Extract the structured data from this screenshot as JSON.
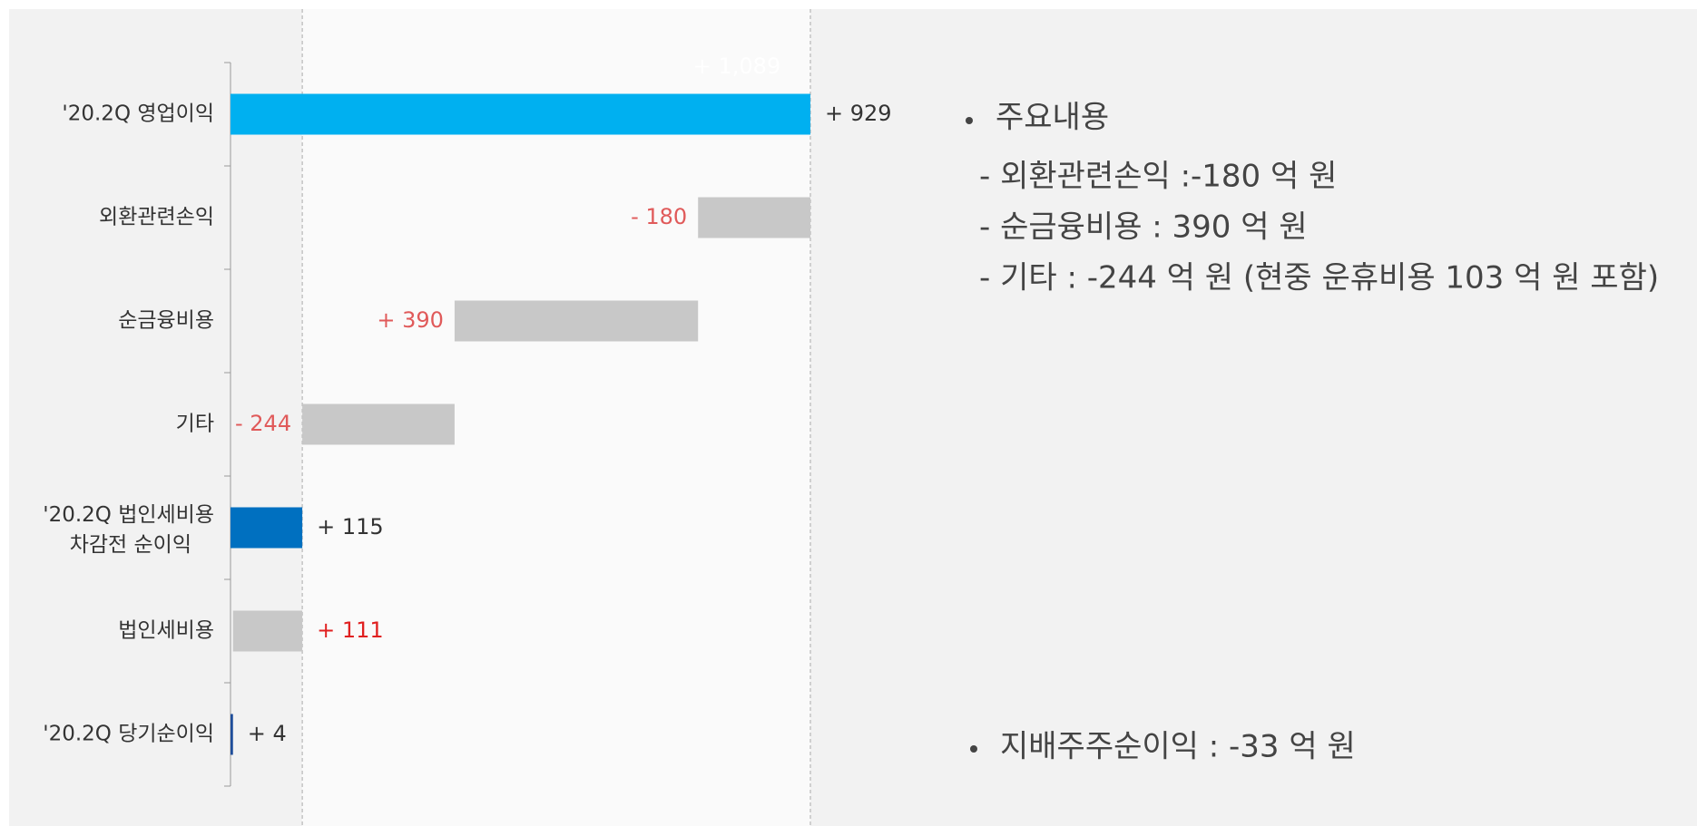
{
  "chart_data": {
    "type": "waterfall",
    "categories": [
      "'20.2Q 영업이익",
      "외환관련손익",
      "순금융비용",
      "기타",
      [
        "'20.2Q 법인세비용",
        "차감전 순이익"
      ],
      "법인세비용",
      "'20.2Q 당기순이익"
    ],
    "values": [
      929,
      -180,
      390,
      -244,
      115,
      111,
      4
    ],
    "value_labels": [
      "+ 929",
      "- 180",
      "+ 390",
      "- 244",
      "+ 115",
      "+ 111",
      "+ 4"
    ],
    "colors": [
      "#00b0f0",
      "#c8c8c8",
      "#c8c8c8",
      "#c8c8c8",
      "#0070c0",
      "#c8c8c8",
      "#1f4e9a"
    ],
    "step_color": "#c8c8c8",
    "label_colors": [
      "#333333",
      "#e05a5a",
      "#e05a5a",
      "#e05a5a",
      "#333333",
      "#e02020",
      "#333333"
    ],
    "annotation": "+ 1,089",
    "xlim": [
      0,
      929
    ]
  },
  "notes": {
    "heading": "주요내용",
    "items": [
      "- 외환관련손익 :-180 억 원",
      "- 순금융비용 : 390 억 원",
      "- 기타 : -244 억 원 (현중 운휴비용 103 억 원 포함)"
    ],
    "summary": "지배주주순이익 : -33 억 원"
  }
}
